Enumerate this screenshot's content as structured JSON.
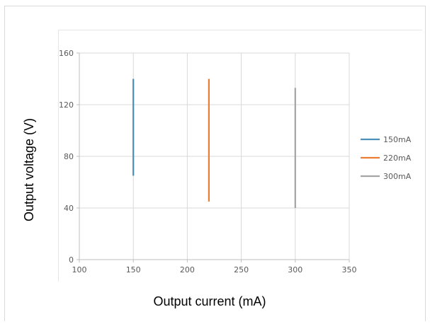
{
  "chart_data": {
    "type": "line",
    "title": "",
    "xlabel": "Output current (mA)",
    "ylabel": "Output voltage (V)",
    "xlim": [
      100,
      350
    ],
    "ylim": [
      0,
      160
    ],
    "x_ticks": [
      "100",
      "150",
      "200",
      "250",
      "300",
      "350"
    ],
    "y_ticks": [
      "0",
      "40",
      "80",
      "120",
      "160"
    ],
    "grid": true,
    "legend_position": "right",
    "series": [
      {
        "name": "150mA",
        "color": "#4a90b8",
        "points": [
          [
            150,
            65
          ],
          [
            150,
            140
          ]
        ]
      },
      {
        "name": "220mA",
        "color": "#ed7d31",
        "points": [
          [
            220,
            45
          ],
          [
            220,
            140
          ]
        ]
      },
      {
        "name": "300mA",
        "color": "#a5a5a5",
        "points": [
          [
            300,
            40
          ],
          [
            300,
            133
          ]
        ]
      }
    ]
  }
}
